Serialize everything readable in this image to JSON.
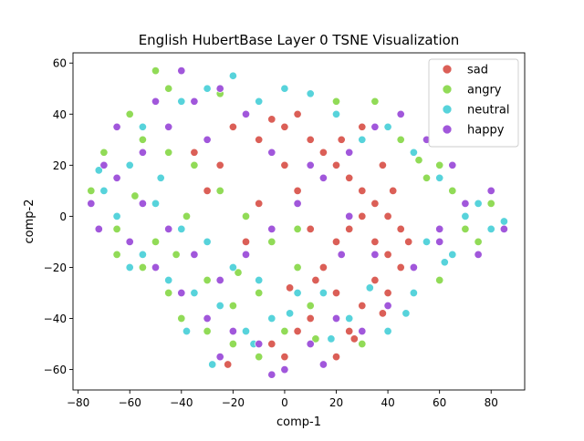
{
  "chart_data": {
    "type": "scatter",
    "title": "English HubertBase Layer 0 TSNE Visualization",
    "xlabel": "comp-1",
    "ylabel": "comp-2",
    "xlim": [
      -82,
      93
    ],
    "ylim": [
      -68,
      64
    ],
    "xticks": [
      -80,
      -60,
      -40,
      -20,
      0,
      20,
      40,
      60,
      80
    ],
    "yticks": [
      -60,
      -40,
      -20,
      0,
      20,
      40,
      60
    ],
    "xtick_labels": [
      "−80",
      "−60",
      "−40",
      "−20",
      "0",
      "20",
      "40",
      "60",
      "80"
    ],
    "ytick_labels": [
      "−60",
      "−40",
      "−20",
      "0",
      "20",
      "40",
      "60"
    ],
    "grid": false,
    "legend_position": "top-right",
    "series": [
      {
        "name": "sad",
        "color": "#db5f57",
        "points": [
          [
            -5,
            38
          ],
          [
            0,
            35
          ],
          [
            5,
            40
          ],
          [
            10,
            30
          ],
          [
            -10,
            30
          ],
          [
            -20,
            35
          ],
          [
            15,
            25
          ],
          [
            20,
            20
          ],
          [
            25,
            15
          ],
          [
            30,
            10
          ],
          [
            35,
            5
          ],
          [
            40,
            0
          ],
          [
            45,
            -5
          ],
          [
            40,
            -15
          ],
          [
            35,
            -25
          ],
          [
            30,
            -35
          ],
          [
            25,
            -45
          ],
          [
            40,
            -30
          ],
          [
            45,
            -20
          ],
          [
            35,
            -10
          ],
          [
            30,
            0
          ],
          [
            25,
            -5
          ],
          [
            20,
            -10
          ],
          [
            15,
            -20
          ],
          [
            20,
            -30
          ],
          [
            10,
            -40
          ],
          [
            5,
            -45
          ],
          [
            -5,
            -50
          ],
          [
            -25,
            20
          ],
          [
            -30,
            10
          ],
          [
            0,
            20
          ],
          [
            5,
            10
          ],
          [
            -10,
            5
          ],
          [
            0,
            -55
          ],
          [
            20,
            -55
          ],
          [
            42,
            10
          ],
          [
            30,
            35
          ],
          [
            10,
            -5
          ],
          [
            -15,
            -10
          ],
          [
            48,
            -10
          ],
          [
            38,
            -38
          ],
          [
            27,
            -48
          ],
          [
            12,
            -25
          ],
          [
            22,
            30
          ],
          [
            -35,
            25
          ],
          [
            38,
            20
          ],
          [
            -22,
            -58
          ],
          [
            2,
            -28
          ]
        ]
      },
      {
        "name": "angry",
        "color": "#91db57",
        "points": [
          [
            -50,
            57
          ],
          [
            -45,
            50
          ],
          [
            -60,
            40
          ],
          [
            -70,
            25
          ],
          [
            -75,
            10
          ],
          [
            -65,
            -5
          ],
          [
            -55,
            -20
          ],
          [
            -45,
            -30
          ],
          [
            -40,
            -40
          ],
          [
            -30,
            -45
          ],
          [
            -20,
            -50
          ],
          [
            -10,
            -55
          ],
          [
            0,
            -45
          ],
          [
            10,
            -35
          ],
          [
            5,
            -20
          ],
          [
            -5,
            -10
          ],
          [
            -15,
            0
          ],
          [
            -25,
            10
          ],
          [
            -35,
            20
          ],
          [
            -45,
            25
          ],
          [
            -55,
            30
          ],
          [
            60,
            20
          ],
          [
            65,
            10
          ],
          [
            55,
            15
          ],
          [
            70,
            -5
          ],
          [
            75,
            -10
          ],
          [
            80,
            5
          ],
          [
            60,
            -25
          ],
          [
            45,
            30
          ],
          [
            35,
            45
          ],
          [
            20,
            45
          ],
          [
            -65,
            -15
          ],
          [
            -50,
            -10
          ],
          [
            -30,
            -25
          ],
          [
            -20,
            -35
          ],
          [
            12,
            -48
          ],
          [
            -38,
            0
          ],
          [
            -58,
            8
          ],
          [
            -10,
            -30
          ],
          [
            5,
            -5
          ],
          [
            30,
            -50
          ],
          [
            52,
            22
          ],
          [
            -42,
            -15
          ],
          [
            -25,
            48
          ],
          [
            -18,
            -22
          ]
        ]
      },
      {
        "name": "neutral",
        "color": "#57d3db",
        "points": [
          [
            -55,
            35
          ],
          [
            -40,
            45
          ],
          [
            -30,
            50
          ],
          [
            -20,
            55
          ],
          [
            -10,
            45
          ],
          [
            0,
            50
          ],
          [
            10,
            48
          ],
          [
            20,
            40
          ],
          [
            30,
            30
          ],
          [
            40,
            35
          ],
          [
            50,
            25
          ],
          [
            60,
            15
          ],
          [
            70,
            0
          ],
          [
            80,
            -5
          ],
          [
            85,
            -2
          ],
          [
            65,
            -15
          ],
          [
            55,
            -10
          ],
          [
            50,
            -30
          ],
          [
            40,
            -45
          ],
          [
            25,
            -40
          ],
          [
            15,
            -30
          ],
          [
            5,
            -30
          ],
          [
            -5,
            -40
          ],
          [
            -15,
            -45
          ],
          [
            -25,
            -35
          ],
          [
            -35,
            -30
          ],
          [
            -45,
            -25
          ],
          [
            -55,
            -15
          ],
          [
            -65,
            0
          ],
          [
            -70,
            10
          ],
          [
            -60,
            20
          ],
          [
            -50,
            5
          ],
          [
            -40,
            -5
          ],
          [
            -30,
            -10
          ],
          [
            -20,
            -20
          ],
          [
            -10,
            -25
          ],
          [
            -60,
            -20
          ],
          [
            -38,
            -45
          ],
          [
            -28,
            -58
          ],
          [
            -12,
            -50
          ],
          [
            2,
            -38
          ],
          [
            18,
            -48
          ],
          [
            33,
            -28
          ],
          [
            47,
            -38
          ],
          [
            62,
            -18
          ],
          [
            75,
            5
          ],
          [
            -72,
            18
          ],
          [
            -48,
            15
          ]
        ]
      },
      {
        "name": "happy",
        "color": "#a157db",
        "points": [
          [
            -40,
            57
          ],
          [
            -50,
            45
          ],
          [
            -65,
            35
          ],
          [
            -70,
            20
          ],
          [
            -75,
            5
          ],
          [
            -72,
            -5
          ],
          [
            -60,
            -10
          ],
          [
            -50,
            -20
          ],
          [
            -40,
            -30
          ],
          [
            -30,
            -40
          ],
          [
            -20,
            -45
          ],
          [
            -10,
            -50
          ],
          [
            0,
            -60
          ],
          [
            10,
            -50
          ],
          [
            20,
            -40
          ],
          [
            30,
            -45
          ],
          [
            40,
            -35
          ],
          [
            50,
            -20
          ],
          [
            60,
            -5
          ],
          [
            70,
            5
          ],
          [
            80,
            10
          ],
          [
            75,
            -15
          ],
          [
            65,
            20
          ],
          [
            55,
            30
          ],
          [
            45,
            40
          ],
          [
            35,
            35
          ],
          [
            25,
            25
          ],
          [
            15,
            15
          ],
          [
            5,
            5
          ],
          [
            -5,
            -5
          ],
          [
            -15,
            -15
          ],
          [
            -25,
            -25
          ],
          [
            -35,
            -15
          ],
          [
            -45,
            -5
          ],
          [
            -55,
            5
          ],
          [
            -65,
            15
          ],
          [
            -55,
            25
          ],
          [
            -45,
            35
          ],
          [
            -35,
            45
          ],
          [
            -25,
            50
          ],
          [
            -15,
            40
          ],
          [
            -5,
            25
          ],
          [
            10,
            20
          ],
          [
            25,
            0
          ],
          [
            35,
            -15
          ],
          [
            -25,
            -55
          ],
          [
            -5,
            -62
          ],
          [
            15,
            -58
          ],
          [
            22,
            -15
          ],
          [
            -30,
            30
          ],
          [
            60,
            -10
          ],
          [
            85,
            -5
          ]
        ]
      }
    ]
  }
}
